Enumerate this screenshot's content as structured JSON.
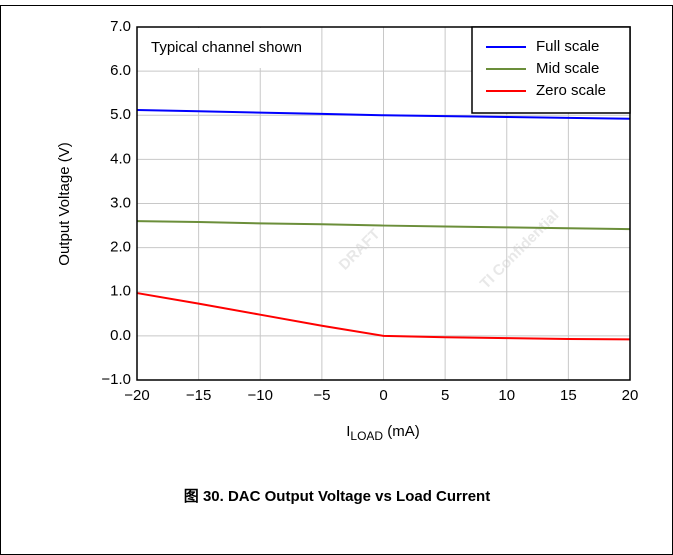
{
  "chart_data": {
    "type": "line",
    "title": "图 30. DAC Output Voltage vs Load Current",
    "xlabel": [
      "I",
      "LOAD",
      " (mA)"
    ],
    "ylabel": "Output Voltage (V)",
    "annotation": "Typical channel shown",
    "watermark": [
      "DRAFT",
      "TI Confidential"
    ],
    "x": [
      -20,
      -15,
      -10,
      -5,
      0,
      5,
      10,
      15,
      20
    ],
    "series": [
      {
        "name": "Full scale",
        "color": "#0000ff",
        "values": [
          5.12,
          5.09,
          5.06,
          5.03,
          5.0,
          4.98,
          4.96,
          4.94,
          4.92
        ]
      },
      {
        "name": "Mid scale",
        "color": "#6b8e3a",
        "values": [
          2.6,
          2.58,
          2.55,
          2.53,
          2.5,
          2.48,
          2.46,
          2.44,
          2.42
        ]
      },
      {
        "name": "Zero scale",
        "color": "#ff0000",
        "values": [
          0.97,
          0.73,
          0.48,
          0.23,
          0.0,
          -0.03,
          -0.05,
          -0.07,
          -0.08
        ]
      }
    ],
    "xlim": [
      -20,
      20
    ],
    "xticks": [
      {
        "value": -20,
        "label": "−20"
      },
      {
        "value": -15,
        "label": "−15"
      },
      {
        "value": -10,
        "label": "−10"
      },
      {
        "value": -5,
        "label": "−5"
      },
      0,
      5,
      10,
      15,
      20
    ],
    "ylim": [
      -1,
      7
    ],
    "yticks": [
      {
        "value": -1,
        "label": "−1.0"
      },
      {
        "value": 0,
        "label": "0.0"
      },
      {
        "value": 1,
        "label": "1.0"
      },
      {
        "value": 2,
        "label": "2.0"
      },
      {
        "value": 3,
        "label": "3.0"
      },
      {
        "value": 4,
        "label": "4.0"
      },
      {
        "value": 5,
        "label": "5.0"
      },
      {
        "value": 6,
        "label": "6.0"
      },
      {
        "value": 7,
        "label": "7.0"
      }
    ],
    "grid": true,
    "legend": "upper right"
  }
}
